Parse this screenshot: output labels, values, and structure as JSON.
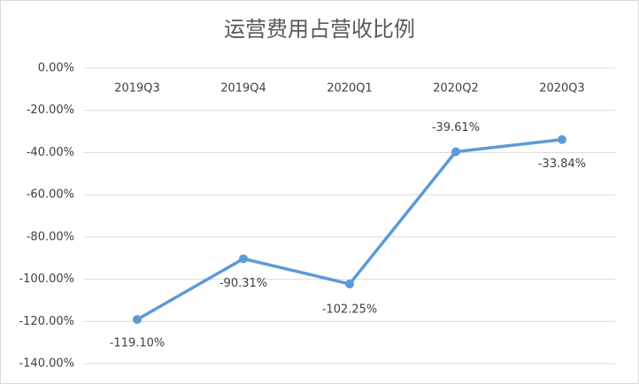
{
  "chart_data": {
    "type": "line",
    "title": "运营费用占营收比例",
    "categories": [
      "2019Q3",
      "2019Q4",
      "2020Q1",
      "2020Q2",
      "2020Q3"
    ],
    "series": [
      {
        "name": "运营费用占营收比例",
        "color": "#5b9bd5",
        "values": [
          -119.1,
          -90.31,
          -102.25,
          -39.61,
          -33.84
        ],
        "value_labels": [
          "-119.10%",
          "-90.31%",
          "-102.25%",
          "-39.61%",
          "-33.84%"
        ]
      }
    ],
    "ylim": [
      -140,
      0
    ],
    "yticks": [
      {
        "value": 0,
        "label": "0.00%"
      },
      {
        "value": -20,
        "label": "-20.00%"
      },
      {
        "value": -40,
        "label": "-40.00%"
      },
      {
        "value": -60,
        "label": "-60.00%"
      },
      {
        "value": -80,
        "label": "-80.00%"
      },
      {
        "value": -100,
        "label": "-100.00%"
      },
      {
        "value": -120,
        "label": "-120.00%"
      },
      {
        "value": -140,
        "label": "-140.00%"
      }
    ],
    "grid": true
  }
}
